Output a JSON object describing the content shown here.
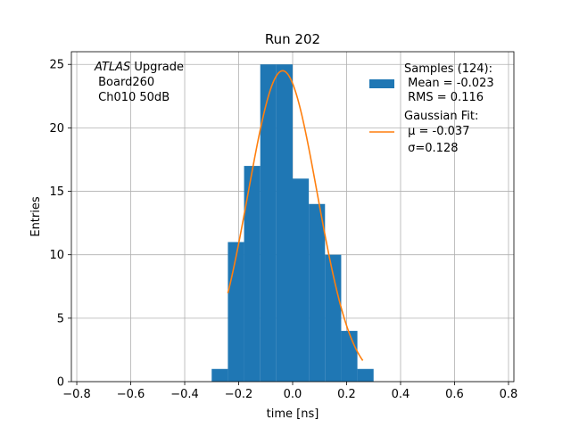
{
  "chart_data": {
    "type": "bar",
    "title": "Run 202",
    "xlabel": "time [ns]",
    "ylabel": "Entries",
    "xlim": [
      -0.82,
      0.82
    ],
    "ylim": [
      0,
      26
    ],
    "grid": true,
    "xticks": [
      -0.8,
      -0.6,
      -0.4,
      -0.2,
      0.0,
      0.2,
      0.4,
      0.6,
      0.8
    ],
    "xtick_labels": [
      "−0.8",
      "−0.6",
      "−0.4",
      "−0.2",
      "0.0",
      "0.2",
      "0.4",
      "0.6",
      "0.8"
    ],
    "yticks": [
      0,
      5,
      10,
      15,
      20,
      25
    ],
    "ytick_labels": [
      "0",
      "5",
      "10",
      "15",
      "20",
      "25"
    ],
    "annotation": {
      "italic": "ATLAS",
      "line1_rest": " Upgrade",
      "line2": " Board260",
      "line3": " Ch010 50dB"
    },
    "legend": {
      "placement": "top-right",
      "hist_label": [
        "Samples (124):",
        " Mean = -0.023",
        " RMS = 0.116"
      ],
      "fit_label": [
        "Gaussian Fit:",
        " μ = -0.037",
        " σ=0.128"
      ]
    },
    "histogram": {
      "name": "Samples (124)",
      "color": "#1f77b4",
      "bin_edges": [
        -0.3,
        -0.24,
        -0.18,
        -0.12,
        -0.06,
        0.0,
        0.06,
        0.12,
        0.18,
        0.24,
        0.3
      ],
      "counts": [
        1,
        11,
        17,
        25,
        25,
        16,
        14,
        10,
        4,
        1
      ],
      "values": [
        1,
        11,
        17,
        25,
        25,
        16,
        14,
        10,
        4,
        1
      ]
    },
    "fit": {
      "name": "Gaussian Fit",
      "color": "#ff7f0e",
      "amplitude": 24.5,
      "mu": -0.037,
      "sigma": 0.128,
      "x_range": [
        -0.24,
        0.26
      ]
    }
  }
}
